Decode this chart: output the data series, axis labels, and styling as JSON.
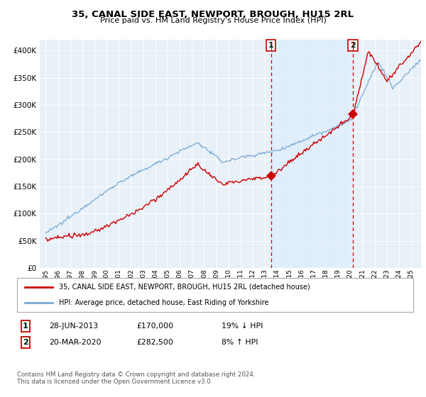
{
  "title": "35, CANAL SIDE EAST, NEWPORT, BROUGH, HU15 2RL",
  "subtitle": "Price paid vs. HM Land Registry's House Price Index (HPI)",
  "legend_line1": "35, CANAL SIDE EAST, NEWPORT, BROUGH, HU15 2RL (detached house)",
  "legend_line2": "HPI: Average price, detached house, East Riding of Yorkshire",
  "footnote": "Contains HM Land Registry data © Crown copyright and database right 2024.\nThis data is licensed under the Open Government Licence v3.0.",
  "purchase1_date": "28-JUN-2013",
  "purchase1_price": "£170,000",
  "purchase1_hpi": "19% ↓ HPI",
  "purchase1_x": 2013.49,
  "purchase1_y": 170000,
  "purchase2_date": "20-MAR-2020",
  "purchase2_price": "£282,500",
  "purchase2_hpi": "8% ↑ HPI",
  "purchase2_x": 2020.22,
  "purchase2_y": 282500,
  "hpi_color": "#7aaad4",
  "price_color": "#cc0000",
  "shade_color": "#ddeeff",
  "background_color": "#e8f0f8",
  "grid_color": "#ffffff",
  "ylim_min": 0,
  "ylim_max": 420000,
  "yticks": [
    0,
    50000,
    100000,
    150000,
    200000,
    250000,
    300000,
    350000,
    400000
  ],
  "xlim_min": 1994.5,
  "xlim_max": 2025.8
}
